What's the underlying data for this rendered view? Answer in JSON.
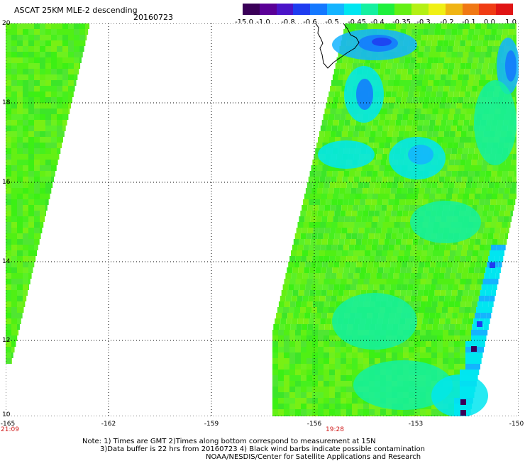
{
  "header": {
    "title": "ASCAT 25KM MLE-2 descending",
    "date": "20160723"
  },
  "colorbar": {
    "labels": [
      "-15.0",
      "-1.0",
      "-0.8",
      "-0.6",
      "-0.5",
      "-0.45",
      "-0.4",
      "-0.35",
      "-0.3",
      "-0.2",
      "-0.1",
      "0.0",
      "1.0"
    ],
    "colors": [
      "#3a0058",
      "#5a0096",
      "#4a14c8",
      "#1e3cf0",
      "#1478ff",
      "#14b4ff",
      "#00e6f0",
      "#14f0a0",
      "#1ef03c",
      "#64f014",
      "#b4f014",
      "#f0f014",
      "#f0b414",
      "#f07814",
      "#f03c14",
      "#e01414"
    ]
  },
  "axes": {
    "lat_labels": [
      "20",
      "18",
      "16",
      "14",
      "12",
      "10"
    ],
    "lon_labels": [
      "-165",
      "-162",
      "-159",
      "-156",
      "-153",
      "-150"
    ],
    "time_labels": [
      "21:09",
      "19:28"
    ]
  },
  "notes": {
    "line1": "Note: 1) Times are GMT 2)Times along bottom correspond to measurement at 15N",
    "line2": "3)Data buffer is 22 hrs from 20160723 4) Black wind barbs indicate possible contamination",
    "line3": "NOAA/NESDIS/Center for Satellite Applications and Research"
  }
}
